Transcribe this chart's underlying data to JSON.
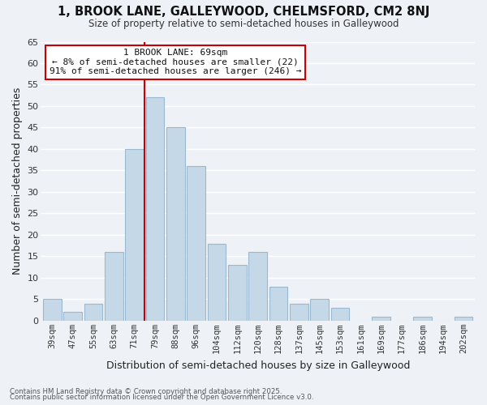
{
  "title": "1, BROOK LANE, GALLEYWOOD, CHELMSFORD, CM2 8NJ",
  "subtitle": "Size of property relative to semi-detached houses in Galleywood",
  "xlabel": "Distribution of semi-detached houses by size in Galleywood",
  "ylabel": "Number of semi-detached properties",
  "bin_labels": [
    "39sqm",
    "47sqm",
    "55sqm",
    "63sqm",
    "71sqm",
    "79sqm",
    "88sqm",
    "96sqm",
    "104sqm",
    "112sqm",
    "120sqm",
    "128sqm",
    "137sqm",
    "145sqm",
    "153sqm",
    "161sqm",
    "169sqm",
    "177sqm",
    "186sqm",
    "194sqm",
    "202sqm"
  ],
  "bar_values": [
    5,
    2,
    4,
    16,
    40,
    52,
    45,
    36,
    18,
    13,
    16,
    8,
    4,
    5,
    3,
    0,
    1,
    0,
    1,
    0,
    1
  ],
  "bar_color": "#c5d8e8",
  "bar_edge_color": "#9ab8d0",
  "vline_color": "#cc0000",
  "annotation_title": "1 BROOK LANE: 69sqm",
  "annotation_line1": "← 8% of semi-detached houses are smaller (22)",
  "annotation_line2": "91% of semi-detached houses are larger (246) →",
  "ylim": [
    0,
    65
  ],
  "yticks": [
    0,
    5,
    10,
    15,
    20,
    25,
    30,
    35,
    40,
    45,
    50,
    55,
    60,
    65
  ],
  "footnote1": "Contains HM Land Registry data © Crown copyright and database right 2025.",
  "footnote2": "Contains public sector information licensed under the Open Government Licence v3.0.",
  "background_color": "#eef2f7",
  "grid_color": "#ffffff"
}
